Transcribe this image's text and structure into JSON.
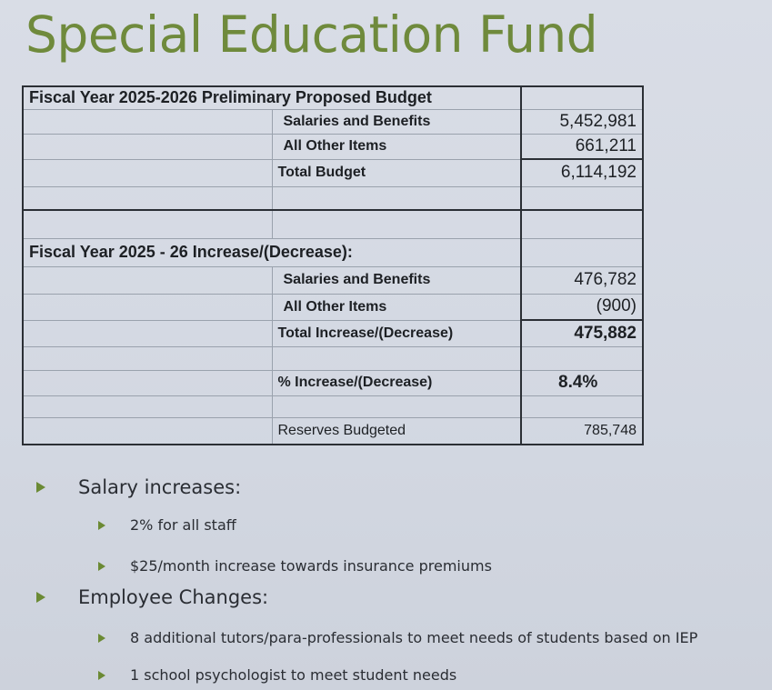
{
  "title": "Special Education Fund",
  "table": {
    "section1_header": "Fiscal Year 2025-2026 Preliminary Proposed Budget",
    "section1_rows": [
      {
        "label": "Salaries and Benefits",
        "value": "5,452,981"
      },
      {
        "label": "All Other Items",
        "value": "661,211"
      },
      {
        "label": "Total Budget",
        "value": "6,114,192"
      }
    ],
    "section2_header": "Fiscal Year 2025 - 26 Increase/(Decrease):",
    "section2_rows": [
      {
        "label": "Salaries and Benefits",
        "value": "476,782"
      },
      {
        "label": "All Other Items",
        "value": "(900)"
      },
      {
        "label": "Total Increase/(Decrease)",
        "value": "475,882"
      }
    ],
    "percent": {
      "label": "% Increase/(Decrease)",
      "value": "8.4%"
    },
    "reserves": {
      "label": "Reserves Budgeted",
      "value": "785,748"
    }
  },
  "bullets": [
    {
      "text": "Salary increases:",
      "children": [
        "2% for all staff",
        "$25/month increase towards insurance premiums"
      ]
    },
    {
      "text": "Employee Changes:",
      "children": [
        "8 additional tutors/para-professionals to meet needs of students based on IEP",
        "1 school psychologist to meet student needs"
      ]
    }
  ],
  "colors": {
    "title": "#6f8a3c",
    "bullet": "#6b8a34",
    "background": "#d6dbe4"
  }
}
